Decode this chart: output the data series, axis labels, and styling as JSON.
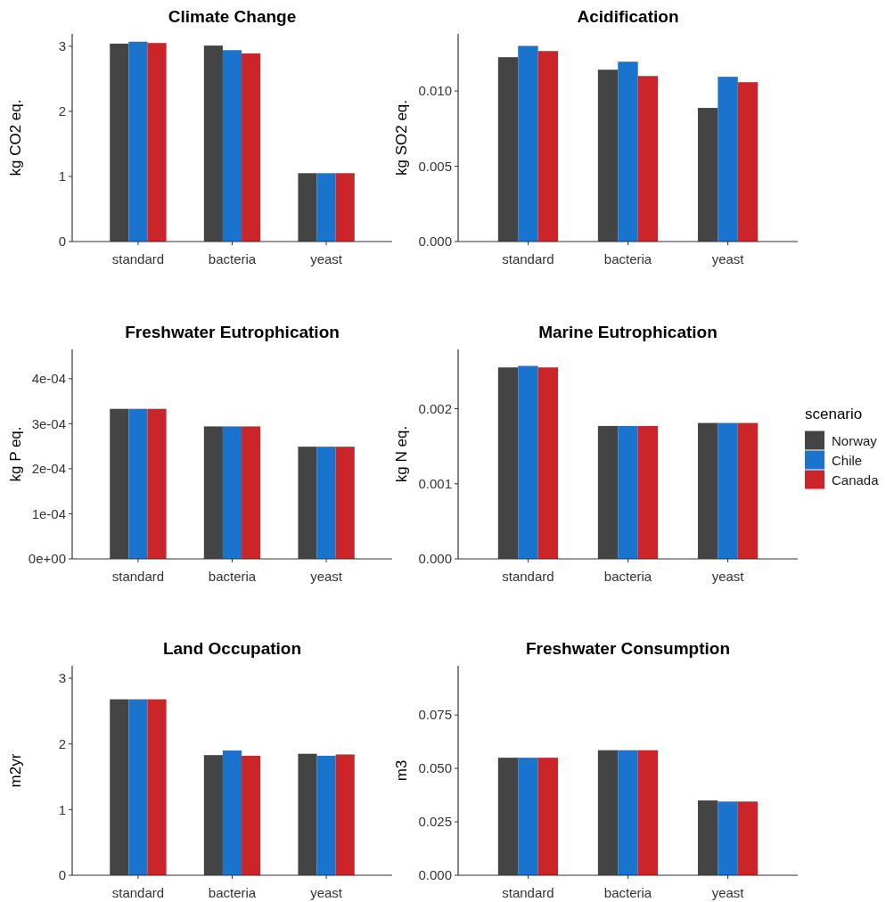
{
  "chart_data": [
    {
      "type": "bar",
      "title": "Climate Change",
      "ylabel": "kg CO2 eq.",
      "categories": [
        "standard",
        "bacteria",
        "yeast"
      ],
      "ylim": [
        0,
        3.19
      ],
      "yticks": [
        0,
        1,
        2,
        3
      ],
      "grid": false,
      "legend": false,
      "series": [
        {
          "color": "#444444",
          "values": [
            3.04,
            3.01,
            1.05
          ]
        },
        {
          "color": "#1a73cc",
          "values": [
            3.07,
            2.94,
            1.05
          ]
        },
        {
          "color": "#cc2529",
          "values": [
            3.05,
            2.89,
            1.05
          ]
        }
      ]
    },
    {
      "type": "bar",
      "title": "Acidification",
      "ylabel": "kg SO2 eq.",
      "categories": [
        "standard",
        "bacteria",
        "yeast"
      ],
      "ylim": [
        0,
        0.0138
      ],
      "yticks": [
        {
          "value": 0,
          "label": "0.000"
        },
        {
          "value": 0.005,
          "label": "0.005"
        },
        {
          "value": 0.01,
          "label": "0.010"
        }
      ],
      "grid": false,
      "legend": false,
      "series": [
        {
          "color": "#444444",
          "values": [
            0.01225,
            0.01142,
            0.00888
          ]
        },
        {
          "color": "#1a73cc",
          "values": [
            0.013,
            0.01195,
            0.01095
          ]
        },
        {
          "color": "#cc2529",
          "values": [
            0.01266,
            0.011,
            0.01059
          ]
        }
      ]
    },
    {
      "type": "bar",
      "title": "Freshwater Eutrophication",
      "ylabel": "kg P eq.",
      "categories": [
        "standard",
        "bacteria",
        "yeast"
      ],
      "ylim": [
        0,
        0.000465
      ],
      "yticks": [
        {
          "value": 0,
          "label": "0e+00"
        },
        {
          "value": 0.0001,
          "label": "1e-04"
        },
        {
          "value": 0.0002,
          "label": "2e-04"
        },
        {
          "value": 0.0003,
          "label": "3e-04"
        },
        {
          "value": 0.0004,
          "label": "4e-04"
        }
      ],
      "grid": false,
      "legend": false,
      "series": [
        {
          "color": "#444444",
          "values": [
            0.000333,
            0.000294,
            0.000249
          ]
        },
        {
          "color": "#1a73cc",
          "values": [
            0.000333,
            0.000294,
            0.000249
          ]
        },
        {
          "color": "#cc2529",
          "values": [
            0.000333,
            0.000294,
            0.000249
          ]
        }
      ]
    },
    {
      "type": "bar",
      "title": "Marine Eutrophication",
      "ylabel": "kg N eq.",
      "legend_title": "scenario",
      "categories": [
        "standard",
        "bacteria",
        "yeast"
      ],
      "ylim": [
        0,
        0.00279
      ],
      "yticks": [
        {
          "value": 0,
          "label": "0.000"
        },
        {
          "value": 0.001,
          "label": "0.001"
        },
        {
          "value": 0.002,
          "label": "0.002"
        }
      ],
      "grid": false,
      "legend": "right",
      "series": [
        {
          "name": "Norway",
          "color": "#444444",
          "values": [
            0.00255,
            0.00177,
            0.00181
          ]
        },
        {
          "name": "Chile",
          "color": "#1a73cc",
          "values": [
            0.00257,
            0.00177,
            0.00181
          ]
        },
        {
          "name": "Canada",
          "color": "#cc2529",
          "values": [
            0.00255,
            0.00177,
            0.00181
          ]
        }
      ]
    },
    {
      "type": "bar",
      "title": "Land Occupation",
      "ylabel": "m2yr",
      "categories": [
        "standard",
        "bacteria",
        "yeast"
      ],
      "ylim": [
        0,
        3.19
      ],
      "yticks": [
        0,
        1,
        2,
        3
      ],
      "grid": false,
      "legend": false,
      "series": [
        {
          "color": "#444444",
          "values": [
            2.68,
            1.83,
            1.85
          ]
        },
        {
          "color": "#1a73cc",
          "values": [
            2.68,
            1.9,
            1.82
          ]
        },
        {
          "color": "#cc2529",
          "values": [
            2.68,
            1.82,
            1.84
          ]
        }
      ]
    },
    {
      "type": "bar",
      "title": "Freshwater Consumption",
      "ylabel": "m3",
      "categories": [
        "standard",
        "bacteria",
        "yeast"
      ],
      "ylim": [
        0,
        0.098
      ],
      "yticks": [
        {
          "value": 0,
          "label": "0.000"
        },
        {
          "value": 0.025,
          "label": "0.025"
        },
        {
          "value": 0.05,
          "label": "0.050"
        },
        {
          "value": 0.075,
          "label": "0.075"
        }
      ],
      "grid": false,
      "legend": false,
      "series": [
        {
          "color": "#444444",
          "values": [
            0.055,
            0.0585,
            0.035
          ]
        },
        {
          "color": "#1a73cc",
          "values": [
            0.055,
            0.0585,
            0.0345
          ]
        },
        {
          "color": "#cc2529",
          "values": [
            0.055,
            0.0585,
            0.0345
          ]
        }
      ]
    }
  ]
}
